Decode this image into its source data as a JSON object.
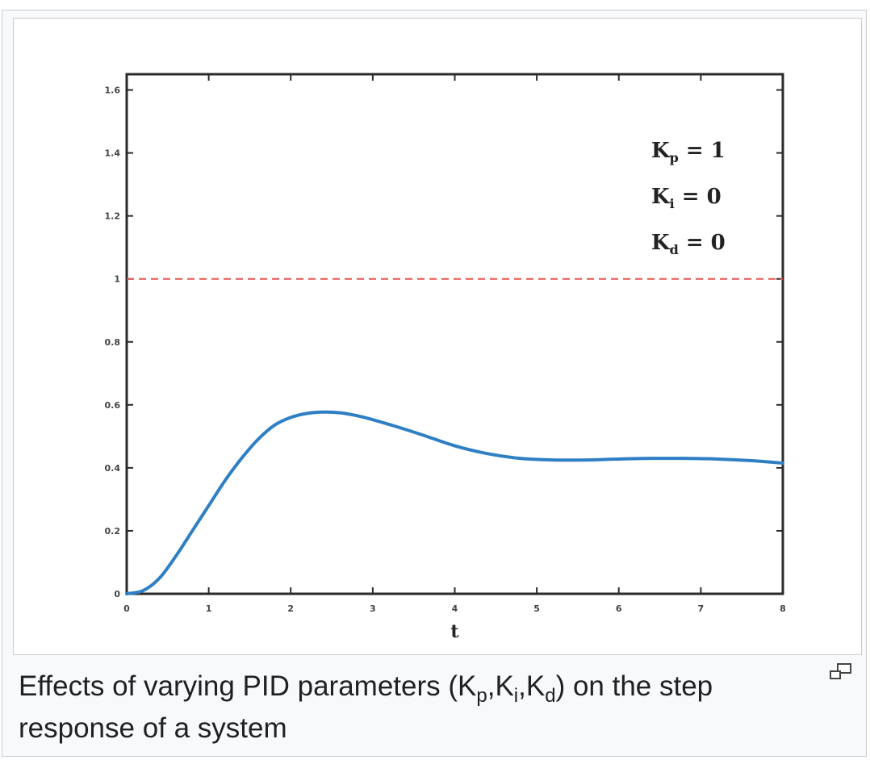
{
  "caption": {
    "prefix": "Effects of varying PID parameters (K",
    "sub_p": "p",
    "sep1": ",K",
    "sub_i": "i",
    "sep2": ",K",
    "sub_d": "d",
    "suffix": ") on the step response of a system"
  },
  "magnify_icon": "magnify-clip-icon",
  "chart_data": {
    "type": "line",
    "title": "",
    "xlabel": "t",
    "ylabel": "",
    "xlim": [
      0,
      8
    ],
    "ylim": [
      0,
      1.65
    ],
    "x_ticks": [
      0,
      1,
      2,
      3,
      4,
      5,
      6,
      7,
      8
    ],
    "x_tick_labels": [
      "0",
      "1",
      "2",
      "3",
      "4",
      "5",
      "6",
      "7",
      "8"
    ],
    "y_ticks": [
      0,
      0.2,
      0.4,
      0.6,
      0.8,
      1,
      1.2,
      1.4,
      1.6
    ],
    "y_tick_labels": [
      "0",
      "0.2",
      "0.4",
      "0.6",
      "0.8",
      "1",
      "1.2",
      "1.4",
      "1.6"
    ],
    "grid": false,
    "series": [
      {
        "color": "#2f7fc4",
        "x": [
          0,
          0.2,
          0.4,
          0.6,
          0.8,
          1.0,
          1.2,
          1.4,
          1.6,
          1.8,
          2.0,
          2.2,
          2.4,
          2.6,
          2.8,
          3.0,
          3.3,
          3.6,
          4.0,
          4.4,
          4.8,
          5.2,
          5.6,
          6.0,
          6.4,
          6.8,
          7.2,
          7.6,
          8.0
        ],
        "y": [
          0,
          0.01,
          0.05,
          0.12,
          0.2,
          0.28,
          0.36,
          0.43,
          0.49,
          0.535,
          0.56,
          0.573,
          0.577,
          0.575,
          0.566,
          0.553,
          0.53,
          0.505,
          0.47,
          0.445,
          0.43,
          0.425,
          0.425,
          0.428,
          0.43,
          0.43,
          0.428,
          0.423,
          0.415
        ]
      }
    ],
    "reference_line": {
      "y": 1,
      "style": "dashed",
      "color": "#e8544e"
    },
    "annotations": [
      {
        "base": "K",
        "sub": "p",
        "rest": " = 1"
      },
      {
        "base": "K",
        "sub": "i",
        "rest": " = 0"
      },
      {
        "base": "K",
        "sub": "d",
        "rest": " = 0"
      }
    ]
  }
}
